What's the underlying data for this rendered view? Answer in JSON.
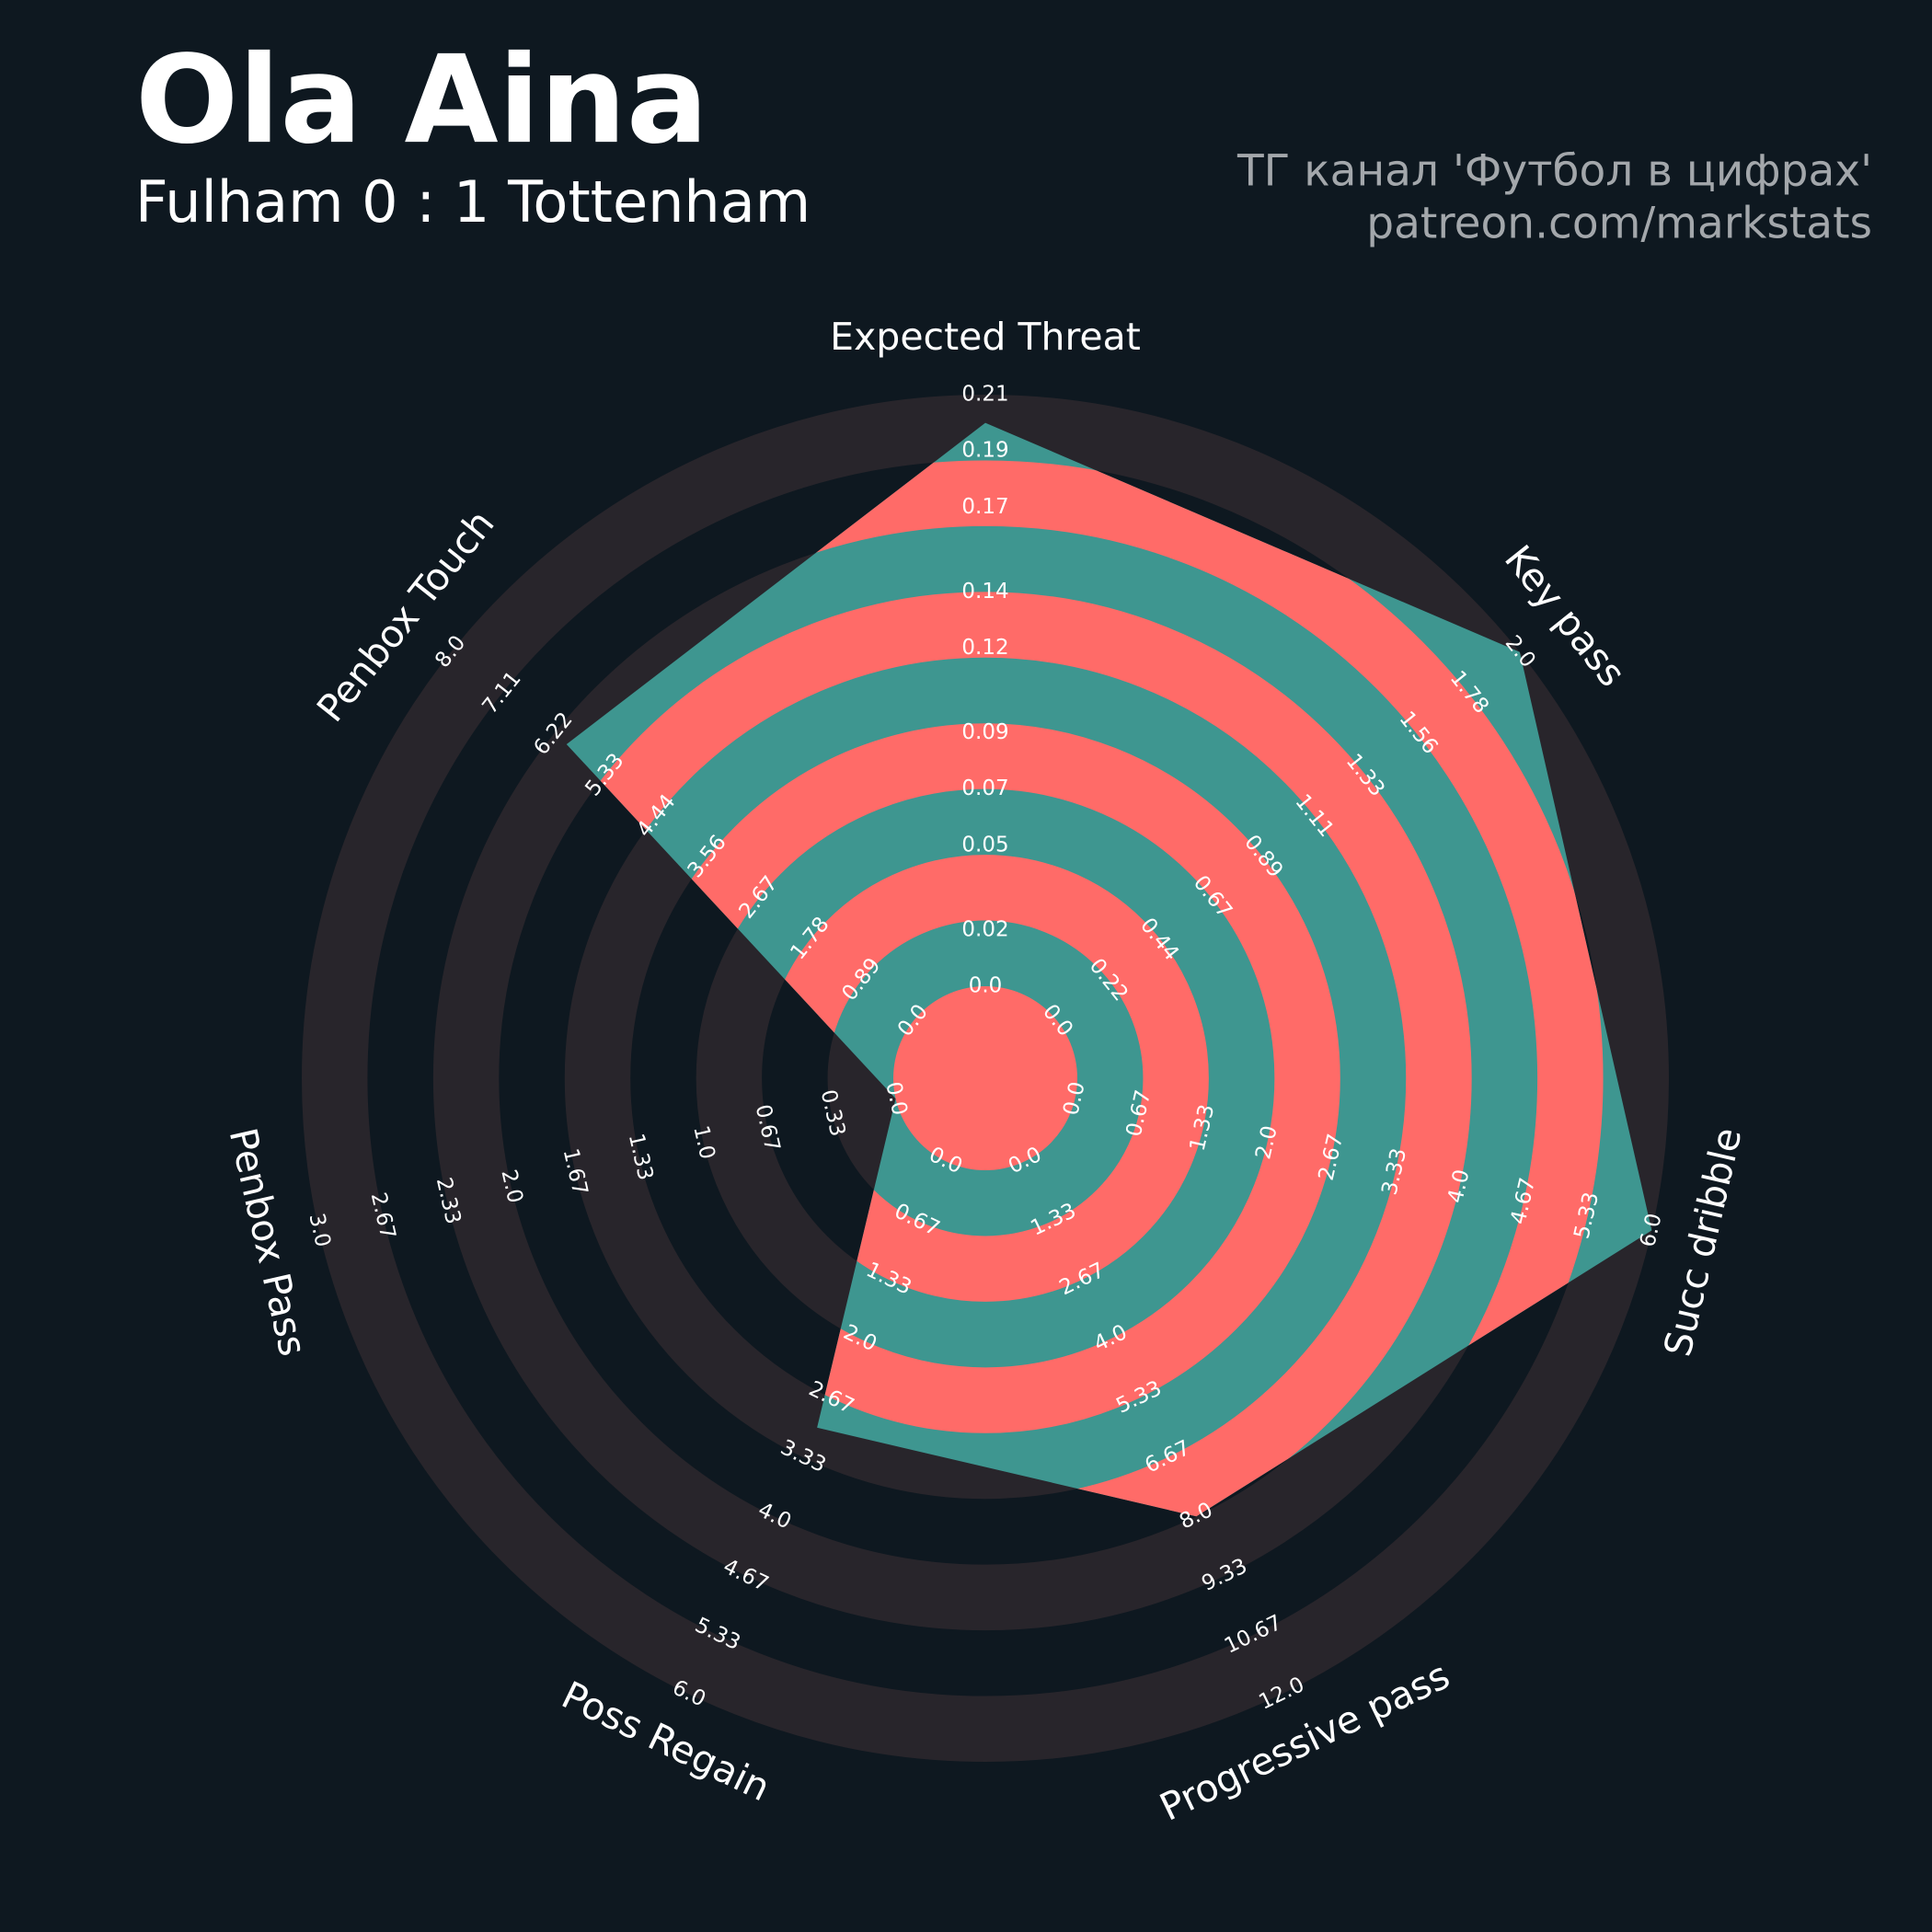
{
  "chart_data": {
    "type": "radar",
    "title": "Ola Aina",
    "subtitle": "Fulham 0 : 1 Tottenham",
    "credits": [
      "ТГ канал 'Футбол в цифрах'",
      "patreon.com/markstats"
    ],
    "axes": [
      {
        "label": "Expected Threat",
        "lim": [
          0,
          0.21
        ],
        "ticks": [
          {
            "value": 0,
            "label": "0.0"
          },
          0.02,
          0.05,
          0.07,
          0.09,
          0.12,
          0.14,
          0.17,
          0.19,
          0.21
        ]
      },
      {
        "label": "Key pass",
        "lim": [
          0,
          2
        ],
        "ticks": [
          {
            "value": 0,
            "label": "0.0"
          },
          0.22,
          0.44,
          0.67,
          0.89,
          1.11,
          1.33,
          1.56,
          1.78,
          {
            "value": 2,
            "label": "2.0"
          }
        ]
      },
      {
        "label": "Succ dribble",
        "lim": [
          0,
          6
        ],
        "ticks": [
          {
            "value": 0,
            "label": "0.0"
          },
          0.67,
          1.33,
          {
            "value": 2,
            "label": "2.0"
          },
          2.67,
          3.33,
          {
            "value": 4,
            "label": "4.0"
          },
          4.67,
          5.33,
          {
            "value": 6,
            "label": "6.0"
          }
        ]
      },
      {
        "label": "Progressive pass",
        "lim": [
          0,
          12
        ],
        "ticks": [
          {
            "value": 0,
            "label": "0.0"
          },
          1.33,
          2.67,
          {
            "value": 4,
            "label": "4.0"
          },
          5.33,
          6.67,
          {
            "value": 8,
            "label": "8.0"
          },
          9.33,
          10.67,
          {
            "value": 12,
            "label": "12.0"
          }
        ]
      },
      {
        "label": "Poss Regain",
        "lim": [
          0,
          6
        ],
        "ticks": [
          {
            "value": 0,
            "label": "0.0"
          },
          0.67,
          1.33,
          {
            "value": 2,
            "label": "2.0"
          },
          2.67,
          3.33,
          {
            "value": 4,
            "label": "4.0"
          },
          4.67,
          5.33,
          {
            "value": 6,
            "label": "6.0"
          }
        ]
      },
      {
        "label": "Penbox Pass",
        "lim": [
          0,
          3
        ],
        "ticks": [
          {
            "value": 0,
            "label": "0.0"
          },
          0.33,
          0.67,
          {
            "value": 1,
            "label": "1.0"
          },
          1.33,
          1.67,
          {
            "value": 2,
            "label": "2.0"
          },
          2.33,
          2.67,
          {
            "value": 3,
            "label": "3.0"
          }
        ]
      },
      {
        "label": "Penbox Touch",
        "lim": [
          0,
          8
        ],
        "ticks": [
          {
            "value": 0,
            "label": "0.0"
          },
          0.89,
          1.78,
          2.67,
          3.56,
          4.44,
          5.33,
          6.22,
          7.11,
          {
            "value": 8,
            "label": "8.0"
          }
        ]
      }
    ],
    "values": [
      0.2,
      2,
      6,
      8,
      3,
      0,
      6
    ],
    "fill_colors": [
      "#3e9690",
      "#ff6b68"
    ],
    "ring_color": "#28252b"
  }
}
